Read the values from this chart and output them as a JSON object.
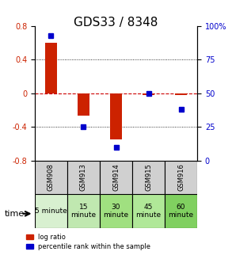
{
  "title": "GDS33 / 8348",
  "samples": [
    "GSM908",
    "GSM913",
    "GSM914",
    "GSM915",
    "GSM916"
  ],
  "time_labels": [
    "5 minute",
    "15\nminute",
    "30\nminute",
    "45\nminute",
    "60\nminute"
  ],
  "log_ratios": [
    0.6,
    -0.27,
    -0.55,
    -0.02,
    -0.02
  ],
  "percentiles": [
    93,
    25,
    10,
    50,
    38
  ],
  "bar_color": "#cc2200",
  "dot_color": "#0000cc",
  "ylim_left": [
    -0.8,
    0.8
  ],
  "ylim_right": [
    0,
    100
  ],
  "yticks_left": [
    -0.8,
    -0.4,
    0,
    0.4,
    0.8
  ],
  "yticks_right": [
    0,
    25,
    50,
    75,
    100
  ],
  "zero_line_color": "#cc0000",
  "table_color": "#d0d0d0",
  "time_colors": [
    "#d8f0d0",
    "#c0e8b0",
    "#a0e080",
    "#b0e898",
    "#80d060"
  ],
  "legend_items": [
    "log ratio",
    "percentile rank within the sample"
  ]
}
